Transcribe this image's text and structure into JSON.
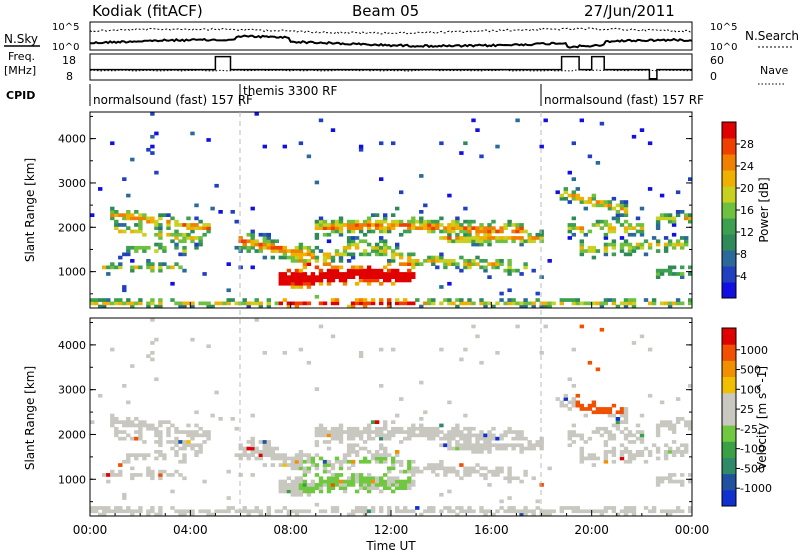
{
  "header": {
    "station": "Kodiak (fitACF)",
    "beam": "Beam 05",
    "date": "27/Jun/2011"
  },
  "aux_panels": {
    "nsky_label": "N.Sky",
    "nsearch_label": "N.Search",
    "freq_label_top": "Freq.",
    "freq_label_bottom": "[MHz]",
    "nave_label": "Nave",
    "cpid_label": "CPID",
    "left_ticks_top": [
      "10^5",
      "10^0"
    ],
    "right_ticks_top": [
      "10^5",
      "10^0"
    ],
    "left_ticks_freq": [
      "18",
      "8"
    ],
    "right_ticks_nave": [
      "60",
      "0"
    ]
  },
  "cpid_segments": [
    {
      "label": "normalsound (fast) 157 RF",
      "start": 0.0
    },
    {
      "label": "themis 3300 RF",
      "start": 6.0
    },
    {
      "label": "normalsound (fast) 157 RF",
      "start": 18.0
    }
  ],
  "chart_data": [
    {
      "type": "heatmap",
      "panel": "power",
      "ylabel": "Slant Range [km]",
      "xlabel": "",
      "ylim": [
        180,
        4600
      ],
      "yticks": [
        1000,
        2000,
        3000,
        4000
      ],
      "xlim": [
        0,
        24
      ],
      "colorbar": {
        "label": "Power [dB]",
        "ticks": [
          "4",
          "8",
          "12",
          "16",
          "20",
          "24",
          "28"
        ],
        "colors": [
          "#1010e0",
          "#2040c0",
          "#2a6a9a",
          "#2f8a5a",
          "#3ca050",
          "#70c040",
          "#c8d020",
          "#f0b000",
          "#f08000",
          "#f04000",
          "#e00000"
        ]
      }
    },
    {
      "type": "heatmap",
      "panel": "velocity",
      "ylabel": "Slant Range [km]",
      "xlabel": "Time UT",
      "ylim": [
        180,
        4600
      ],
      "yticks": [
        1000,
        2000,
        3000,
        4000
      ],
      "xlim": [
        0,
        24
      ],
      "xticks": [
        "00:00",
        "04:00",
        "08:00",
        "12:00",
        "16:00",
        "20:00",
        "00:00"
      ],
      "colorbar": {
        "label": "Velocity [m s^-1]",
        "ticks": [
          "1000",
          "500",
          "100",
          "25",
          "-25",
          "-100",
          "-500",
          "-1000"
        ],
        "colors": [
          "#1030d0",
          "#2050a0",
          "#2f8a6a",
          "#3aa045",
          "#70c840",
          "#c8c8c0",
          "#c8c8c0",
          "#f0c000",
          "#f09000",
          "#f05000",
          "#e00000"
        ]
      }
    }
  ]
}
